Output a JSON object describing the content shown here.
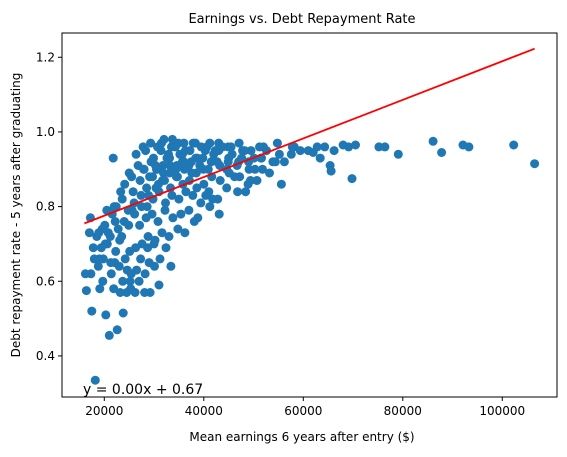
{
  "chart_data": {
    "type": "scatter",
    "title": "Earnings vs. Debt Repayment Rate",
    "xlabel": "Mean earnings 6 years after entry ($)",
    "ylabel": "Debt repayment rate - 5 years after graduating",
    "xlim": [
      11500,
      111000
    ],
    "ylim": [
      0.29,
      1.265
    ],
    "xticks": [
      20000,
      40000,
      60000,
      80000,
      100000
    ],
    "yticks": [
      0.4,
      0.6,
      0.8,
      1.0,
      1.2
    ],
    "xtick_labels": [
      "20000",
      "40000",
      "60000",
      "80000",
      "100000"
    ],
    "ytick_labels": [
      "0.4",
      "0.6",
      "0.8",
      "1.0",
      "1.2"
    ],
    "grid": false,
    "point_color": "#1f77b4",
    "fit_line": {
      "x": [
        16000,
        106500
      ],
      "y": [
        0.755,
        1.223
      ],
      "color": "#ff0000",
      "equation": "y = 0.00x + 0.67",
      "equation_color": "#ff0000"
    },
    "points": {
      "x": [
        16200,
        17500,
        18200,
        19100,
        20300,
        21000,
        21900,
        22600,
        23800,
        24500,
        25300,
        26200,
        27000,
        28100,
        29200,
        31000,
        33400,
        16400,
        17800,
        18800,
        19800,
        20600,
        21400,
        22100,
        23000,
        23700,
        24600,
        25200,
        26500,
        27300,
        28200,
        29000,
        30100,
        31200,
        32400,
        18500,
        19600,
        20200,
        21200,
        22300,
        23100,
        24200,
        25100,
        26300,
        27600,
        28800,
        30200,
        31600,
        33000,
        34800,
        36200,
        38100,
        17200,
        18900,
        20100,
        21600,
        22800,
        24000,
        25600,
        27100,
        28400,
        29600,
        30800,
        32200,
        33800,
        35400,
        37000,
        38800,
        41200,
        43100,
        22400,
        23600,
        24800,
        26000,
        27400,
        28600,
        29800,
        31000,
        32300,
        33600,
        35000,
        36400,
        37800,
        39400,
        41000,
        42800,
        44600,
        46800,
        48900,
        24100,
        25800,
        27200,
        28500,
        29700,
        30900,
        32100,
        33300,
        34500,
        35800,
        37100,
        38500,
        40000,
        41600,
        43300,
        45100,
        47200,
        49400,
        51800,
        21800,
        25000,
        26800,
        28000,
        29400,
        30600,
        31800,
        33100,
        34400,
        35700,
        37000,
        38400,
        39900,
        41500,
        43200,
        45000,
        47000,
        49100,
        51500,
        53900,
        26400,
        28300,
        29900,
        31400,
        32900,
        34300,
        35700,
        37200,
        38700,
        40300,
        42000,
        43800,
        45700,
        47800,
        50100,
        52600,
        55200,
        57800,
        27800,
        29300,
        30700,
        32000,
        33500,
        34900,
        36300,
        37900,
        39500,
        41200,
        43000,
        44900,
        47100,
        49500,
        52000,
        54800,
        58200,
        29100,
        30500,
        31900,
        33200,
        34700,
        36100,
        37600,
        39200,
        40900,
        42700,
        44600,
        46700,
        49000,
        51600,
        54400,
        57600,
        61000,
        64300,
        31500,
        33700,
        36000,
        38300,
        40600,
        43000,
        45500,
        48200,
        51200,
        62000,
        62800,
        65400,
        66200,
        68000,
        69100,
        70500,
        75200,
        76400,
        79100,
        86100,
        87800,
        92100,
        93300,
        102300,
        106500,
        18000,
        19400,
        20800,
        22200,
        23500,
        24900,
        26100,
        27500,
        28900,
        30400,
        31700,
        33100,
        34600,
        36000,
        22000,
        23300,
        25500,
        27900,
        30300,
        32600,
        35200,
        37500,
        39800,
        42300,
        44900,
        47600,
        50300,
        53200,
        56200,
        59400,
        17000,
        19000,
        20500,
        17300,
        21300,
        23200,
        25400,
        28700,
        30000,
        19700,
        65600,
        69800,
        63400,
        38600,
        40400,
        41800,
        46200,
        48400,
        50700,
        55600
      ],
      "y": [
        0.62,
        0.52,
        0.335,
        0.58,
        0.51,
        0.455,
        0.58,
        0.47,
        0.515,
        0.57,
        0.58,
        0.57,
        0.6,
        0.57,
        0.57,
        0.59,
        0.64,
        0.575,
        0.69,
        0.64,
        0.66,
        0.7,
        0.62,
        0.65,
        0.64,
        0.6,
        0.63,
        0.6,
        0.63,
        0.66,
        0.62,
        0.65,
        0.64,
        0.66,
        0.69,
        0.72,
        0.74,
        0.7,
        0.72,
        0.68,
        0.71,
        0.66,
        0.68,
        0.69,
        0.7,
        0.72,
        0.71,
        0.73,
        0.72,
        0.74,
        0.73,
        0.76,
        0.77,
        0.73,
        0.75,
        0.78,
        0.74,
        0.76,
        0.79,
        0.75,
        0.77,
        0.78,
        0.76,
        0.79,
        0.77,
        0.78,
        0.79,
        0.77,
        0.8,
        0.78,
        0.8,
        0.82,
        0.79,
        0.81,
        0.83,
        0.8,
        0.82,
        0.84,
        0.81,
        0.83,
        0.82,
        0.84,
        0.83,
        0.81,
        0.84,
        0.82,
        0.85,
        0.84,
        0.86,
        0.86,
        0.84,
        0.87,
        0.85,
        0.88,
        0.86,
        0.87,
        0.85,
        0.88,
        0.86,
        0.87,
        0.89,
        0.86,
        0.88,
        0.87,
        0.89,
        0.88,
        0.87,
        0.9,
        0.93,
        0.89,
        0.91,
        0.9,
        0.92,
        0.9,
        0.91,
        0.93,
        0.9,
        0.92,
        0.91,
        0.93,
        0.9,
        0.92,
        0.91,
        0.93,
        0.92,
        0.9,
        0.93,
        0.92,
        0.94,
        0.95,
        0.93,
        0.95,
        0.94,
        0.96,
        0.94,
        0.95,
        0.93,
        0.95,
        0.94,
        0.96,
        0.94,
        0.95,
        0.93,
        0.95,
        0.94,
        0.96,
        0.96,
        0.97,
        0.96,
        0.98,
        0.96,
        0.97,
        0.95,
        0.97,
        0.96,
        0.97,
        0.95,
        0.96,
        0.97,
        0.95,
        0.96,
        0.97,
        0.96,
        0.88,
        0.9,
        0.89,
        0.91,
        0.88,
        0.9,
        0.89,
        0.91,
        0.9,
        0.92,
        0.9,
        0.91,
        0.92,
        0.93,
        0.92,
        0.94,
        0.95,
        0.96,
        0.97,
        0.98,
        0.97,
        0.97,
        0.96,
        0.97,
        0.96,
        0.95,
        0.96,
        0.945,
        0.96,
        0.91,
        0.95,
        0.965,
        0.96,
        0.965,
        0.96,
        0.96,
        0.94,
        0.975,
        0.945,
        0.965,
        0.96,
        0.965,
        0.915,
        0.66,
        0.69,
        0.73,
        0.76,
        0.72,
        0.75,
        0.78,
        0.8,
        0.83,
        0.85,
        0.87,
        0.89,
        0.91,
        0.92,
        0.8,
        0.84,
        0.88,
        0.9,
        0.91,
        0.93,
        0.94,
        0.92,
        0.93,
        0.95,
        0.92,
        0.93,
        0.9,
        0.89,
        0.92,
        0.95,
        0.73,
        0.66,
        0.79,
        0.62,
        0.65,
        0.57,
        0.62,
        0.69,
        0.7,
        0.6,
        0.895,
        0.875,
        0.93,
        0.85,
        0.83,
        0.82,
        0.88,
        0.84,
        0.87,
        0.86
      ]
    }
  }
}
